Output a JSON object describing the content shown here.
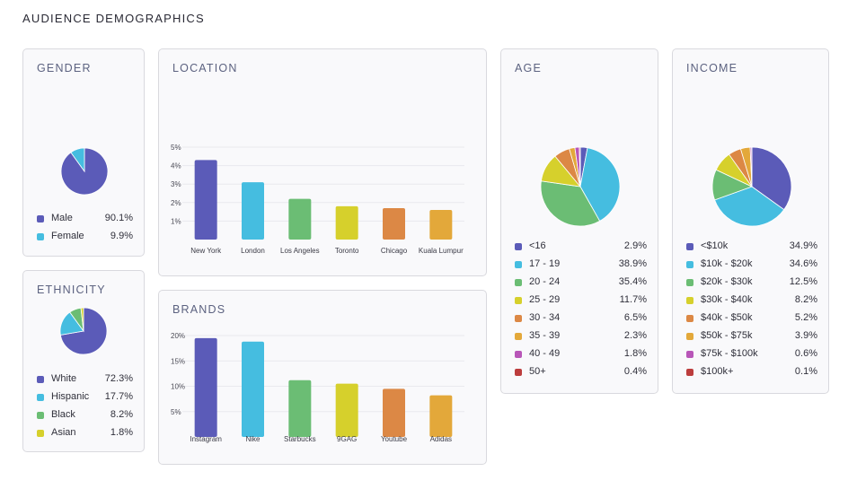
{
  "page": {
    "title": "AUDIENCE DEMOGRAPHICS"
  },
  "chart_data": [
    {
      "id": "gender",
      "type": "pie",
      "title": "GENDER",
      "series": [
        {
          "name": "Male",
          "value": 90.1,
          "label": "90.1%",
          "color": "#5b5bb8"
        },
        {
          "name": "Female",
          "value": 9.9,
          "label": "9.9%",
          "color": "#45bde0"
        }
      ]
    },
    {
      "id": "ethnicity",
      "type": "pie",
      "title": "ETHNICITY",
      "series": [
        {
          "name": "White",
          "value": 72.3,
          "label": "72.3%",
          "color": "#5b5bb8"
        },
        {
          "name": "Hispanic",
          "value": 17.7,
          "label": "17.7%",
          "color": "#45bde0"
        },
        {
          "name": "Black",
          "value": 8.2,
          "label": "8.2%",
          "color": "#6bbd74"
        },
        {
          "name": "Asian",
          "value": 1.8,
          "label": "1.8%",
          "color": "#d6d02c"
        }
      ]
    },
    {
      "id": "location",
      "type": "bar",
      "title": "LOCATION",
      "categories": [
        "New York",
        "London",
        "Los Angeles",
        "Toronto",
        "Chicago",
        "Kuala Lumpur"
      ],
      "values": [
        4.3,
        3.1,
        2.2,
        1.8,
        1.7,
        1.6
      ],
      "colors": [
        "#5b5bb8",
        "#45bde0",
        "#6bbd74",
        "#d6d02c",
        "#dc8845",
        "#e3a83a"
      ],
      "ylim": [
        0,
        5
      ],
      "yticks": [
        1,
        2,
        3,
        4,
        5
      ],
      "ytick_labels": [
        "1%",
        "2%",
        "3%",
        "4%",
        "5%"
      ],
      "grid": true
    },
    {
      "id": "brands",
      "type": "bar",
      "title": "BRANDS",
      "categories": [
        "Instagram",
        "Nike",
        "Starbucks",
        "9GAG",
        "Youtube",
        "Adidas"
      ],
      "values": [
        19.5,
        18.8,
        11.2,
        10.5,
        9.5,
        8.2
      ],
      "colors": [
        "#5b5bb8",
        "#45bde0",
        "#6bbd74",
        "#d6d02c",
        "#dc8845",
        "#e3a83a"
      ],
      "ylim": [
        0,
        20
      ],
      "yticks": [
        5,
        10,
        15,
        20
      ],
      "ytick_labels": [
        "5%",
        "10%",
        "15%",
        "20%"
      ],
      "grid": true
    },
    {
      "id": "age",
      "type": "pie",
      "title": "AGE",
      "series": [
        {
          "name": "<16",
          "value": 2.9,
          "label": "2.9%",
          "color": "#5b5bb8"
        },
        {
          "name": "17 - 19",
          "value": 38.9,
          "label": "38.9%",
          "color": "#45bde0"
        },
        {
          "name": "20 - 24",
          "value": 35.4,
          "label": "35.4%",
          "color": "#6bbd74"
        },
        {
          "name": "25 - 29",
          "value": 11.7,
          "label": "11.7%",
          "color": "#d6d02c"
        },
        {
          "name": "30 - 34",
          "value": 6.5,
          "label": "6.5%",
          "color": "#dc8845"
        },
        {
          "name": "35 - 39",
          "value": 2.3,
          "label": "2.3%",
          "color": "#e3a83a"
        },
        {
          "name": "40 - 49",
          "value": 1.8,
          "label": "1.8%",
          "color": "#b856b8"
        },
        {
          "name": "50+",
          "value": 0.4,
          "label": "0.4%",
          "color": "#bc3d3d"
        }
      ]
    },
    {
      "id": "income",
      "type": "pie",
      "title": "INCOME",
      "series": [
        {
          "name": "<$10k",
          "value": 34.9,
          "label": "34.9%",
          "color": "#5b5bb8"
        },
        {
          "name": "$10k - $20k",
          "value": 34.6,
          "label": "34.6%",
          "color": "#45bde0"
        },
        {
          "name": "$20k - $30k",
          "value": 12.5,
          "label": "12.5%",
          "color": "#6bbd74"
        },
        {
          "name": "$30k - $40k",
          "value": 8.2,
          "label": "8.2%",
          "color": "#d6d02c"
        },
        {
          "name": "$40k - $50k",
          "value": 5.2,
          "label": "5.2%",
          "color": "#dc8845"
        },
        {
          "name": "$50k - $75k",
          "value": 3.9,
          "label": "3.9%",
          "color": "#e3a83a"
        },
        {
          "name": "$75k - $100k",
          "value": 0.6,
          "label": "0.6%",
          "color": "#b856b8"
        },
        {
          "name": "$100k+",
          "value": 0.1,
          "label": "0.1%",
          "color": "#bc3d3d"
        }
      ]
    }
  ]
}
